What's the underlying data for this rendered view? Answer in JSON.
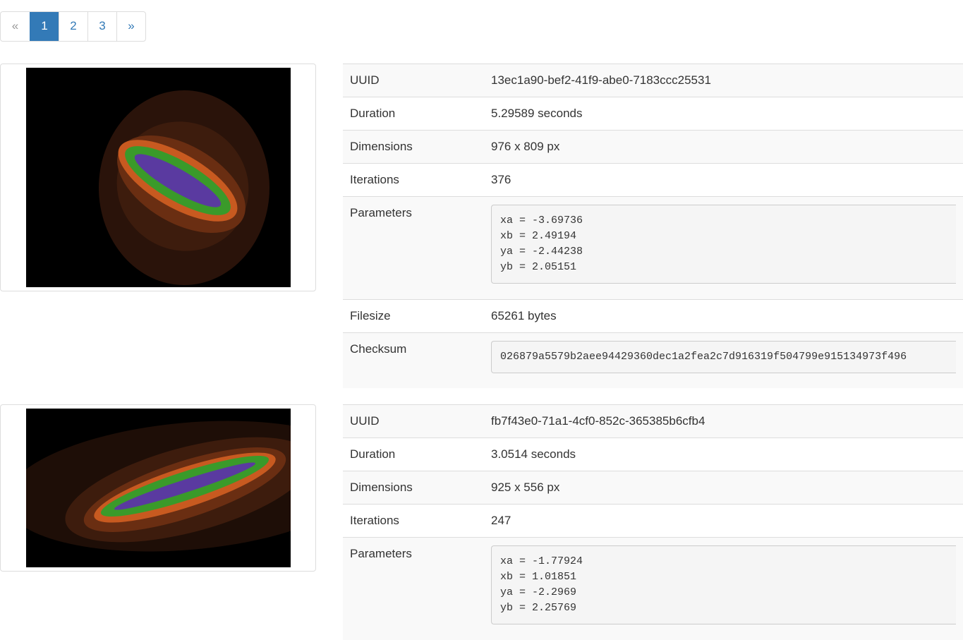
{
  "pagination": {
    "prev": "«",
    "pages": [
      "1",
      "2",
      "3"
    ],
    "active": "1",
    "next": "»"
  },
  "labels": {
    "uuid": "UUID",
    "duration": "Duration",
    "dimensions": "Dimensions",
    "iterations": "Iterations",
    "parameters": "Parameters",
    "filesize": "Filesize",
    "checksum": "Checksum"
  },
  "entries": [
    {
      "uuid": "13ec1a90-bef2-41f9-abe0-7183ccc25531",
      "duration": "5.29589 seconds",
      "dimensions": "976 x 809 px",
      "iterations": "376",
      "parameters": "xa = -3.69736\nxb = 2.49194\nya = -2.44238\nyb = 2.05151",
      "filesize": "65261 bytes",
      "checksum": "026879a5579b2aee94429360dec1a2fea2c7d916319f504799e915134973f496"
    },
    {
      "uuid": "fb7f43e0-71a1-4cf0-852c-365385b6cfb4",
      "duration": "3.0514 seconds",
      "dimensions": "925 x 556 px",
      "iterations": "247",
      "parameters": "xa = -1.77924\nxb = 1.01851\nya = -2.2969\nyb = 2.25769"
    }
  ]
}
